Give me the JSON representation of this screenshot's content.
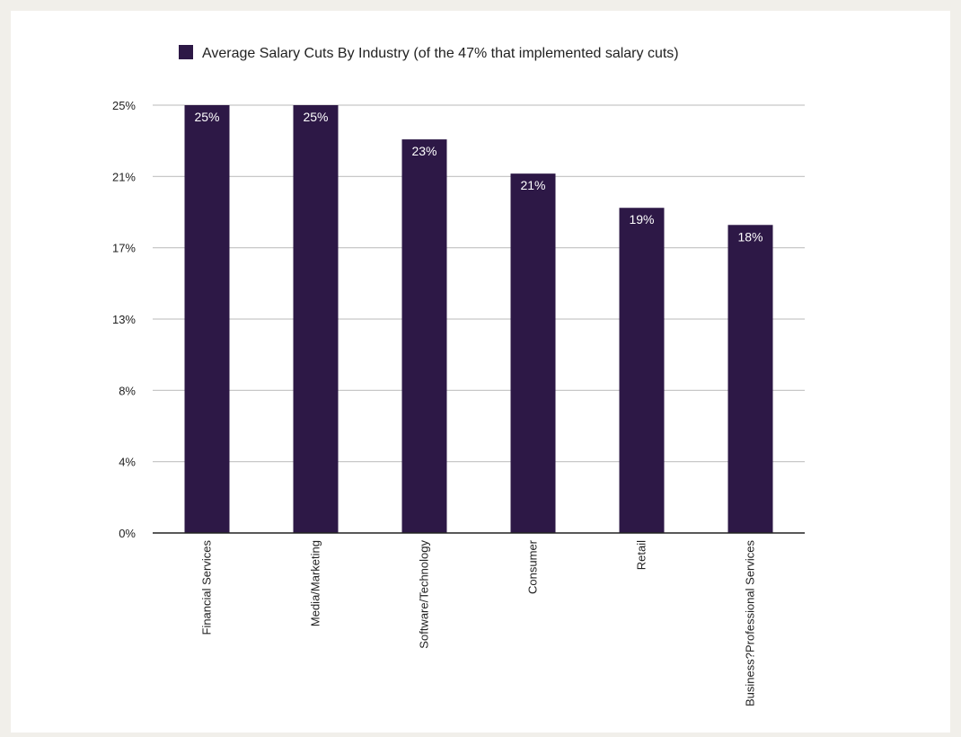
{
  "chart_data": {
    "type": "bar",
    "legend": {
      "label": "Average Salary Cuts By Industry (of the 47%  that implemented salary cuts)",
      "position": "top-center"
    },
    "categories": [
      "Financial Services",
      "Media/Marketing",
      "Software/Technology",
      "Consumer",
      "Retail",
      "Business?Professional Services"
    ],
    "series": [
      {
        "name": "Average Salary Cuts By Industry (of the 47%  that implemented salary cuts)",
        "values": [
          25,
          25,
          23,
          21,
          19,
          18
        ],
        "value_labels": [
          "25%",
          "25%",
          "23%",
          "21%",
          "19%",
          "18%"
        ]
      }
    ],
    "y_ticks": [
      {
        "value": 0,
        "label": "0%"
      },
      {
        "value": 4.17,
        "label": "4%"
      },
      {
        "value": 8.33,
        "label": "8%"
      },
      {
        "value": 12.5,
        "label": "13%"
      },
      {
        "value": 16.67,
        "label": "17%"
      },
      {
        "value": 20.83,
        "label": "21%"
      },
      {
        "value": 25,
        "label": "25%"
      }
    ],
    "ylim": [
      0,
      25
    ],
    "grid": true,
    "colors": {
      "bar": "#2d1846",
      "grid": "#c8c8c8",
      "axis": "#222222"
    }
  }
}
